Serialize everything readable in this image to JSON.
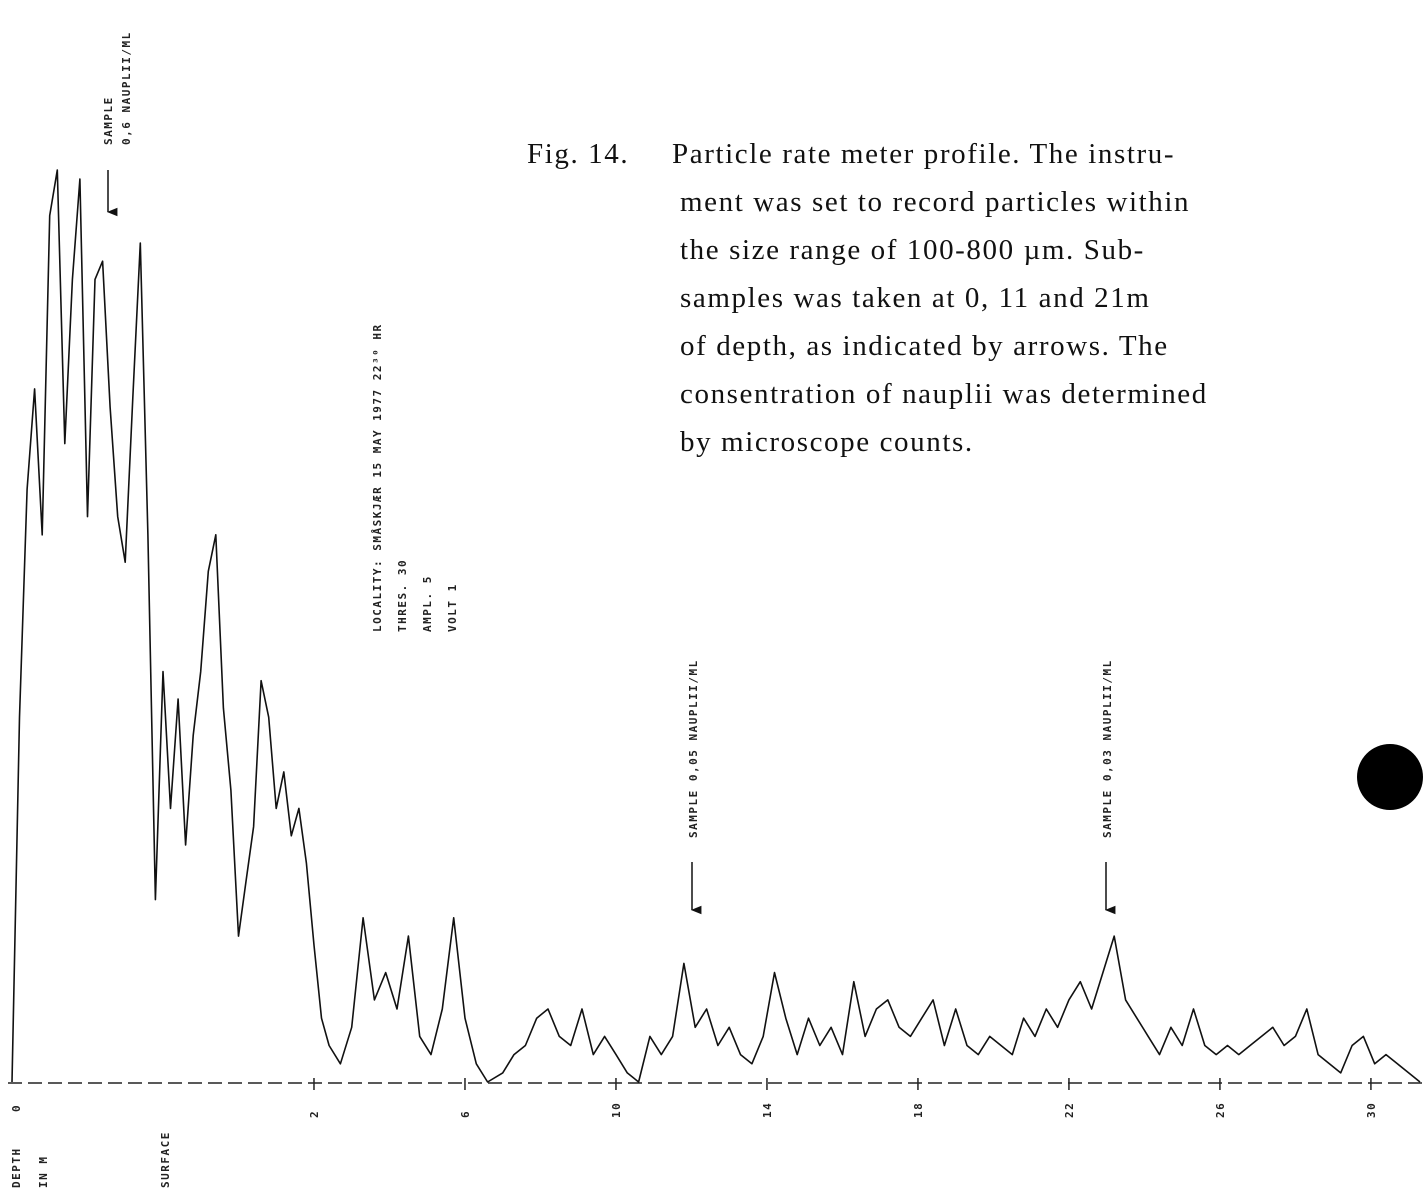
{
  "chart_data": {
    "type": "line",
    "x": [
      -6.0,
      -5.8,
      -5.6,
      -5.4,
      -5.2,
      -5.0,
      -4.8,
      -4.6,
      -4.4,
      -4.2,
      -4.0,
      -3.8,
      -3.6,
      -3.4,
      -3.2,
      -3.0,
      -2.8,
      -2.6,
      -2.4,
      -2.2,
      -2.0,
      -1.8,
      -1.6,
      -1.4,
      -1.2,
      -1.0,
      -0.8,
      -0.6,
      -0.4,
      -0.2,
      0.0,
      0.2,
      0.4,
      0.6,
      0.8,
      1.0,
      1.2,
      1.4,
      1.6,
      1.8,
      2.0,
      2.2,
      2.4,
      2.7,
      3.0,
      3.3,
      3.6,
      3.9,
      4.2,
      4.5,
      4.8,
      5.1,
      5.4,
      5.7,
      6.0,
      6.3,
      6.6,
      7.0,
      7.3,
      7.6,
      7.9,
      8.2,
      8.5,
      8.8,
      9.1,
      9.4,
      9.7,
      10.0,
      10.3,
      10.6,
      10.9,
      11.2,
      11.5,
      11.8,
      12.1,
      12.4,
      12.7,
      13.0,
      13.3,
      13.6,
      13.9,
      14.2,
      14.5,
      14.8,
      15.1,
      15.4,
      15.7,
      16.0,
      16.3,
      16.6,
      16.9,
      17.2,
      17.5,
      17.8,
      18.1,
      18.4,
      18.7,
      19.0,
      19.3,
      19.6,
      19.9,
      20.2,
      20.5,
      20.8,
      21.1,
      21.4,
      21.7,
      22.0,
      22.3,
      22.6,
      22.9,
      23.2,
      23.5,
      23.8,
      24.1,
      24.4,
      24.7,
      25.0,
      25.3,
      25.6,
      25.9,
      26.2,
      26.5,
      26.8,
      27.1,
      27.4,
      27.7,
      28.0,
      28.3,
      28.6,
      28.9,
      29.2,
      29.5,
      29.8,
      30.1,
      30.4,
      30.7,
      31.0,
      31.3
    ],
    "series": [
      {
        "color": "#111111",
        "values": [
          0,
          40,
          65,
          76,
          60,
          95,
          100,
          70,
          88,
          99,
          62,
          88,
          90,
          74,
          62,
          57,
          75,
          92,
          60,
          20,
          45,
          30,
          42,
          26,
          38,
          45,
          56,
          60,
          41,
          32,
          16,
          22,
          28,
          44,
          40,
          30,
          34,
          27,
          30,
          24,
          15,
          7,
          4,
          2,
          6,
          18,
          9,
          12,
          8,
          16,
          5,
          3,
          8,
          18,
          7,
          2,
          0,
          1,
          3,
          4,
          7,
          8,
          5,
          4,
          8,
          3,
          5,
          3,
          1,
          0,
          5,
          3,
          5,
          13,
          6,
          8,
          4,
          6,
          3,
          2,
          5,
          12,
          7,
          3,
          7,
          4,
          6,
          3,
          11,
          5,
          8,
          9,
          6,
          5,
          7,
          9,
          4,
          8,
          4,
          3,
          5,
          4,
          3,
          7,
          5,
          8,
          6,
          9,
          11,
          8,
          12,
          16,
          9,
          7,
          5,
          3,
          6,
          4,
          8,
          4,
          3,
          4,
          3,
          4,
          5,
          6,
          4,
          5,
          8,
          3,
          2,
          1,
          4,
          5,
          2,
          3,
          2,
          1,
          0
        ]
      }
    ],
    "xlim": [
      -6.0,
      31.3
    ],
    "ylim": [
      0,
      100
    ],
    "xticks": [
      2,
      6,
      10,
      14,
      18,
      22,
      26,
      30
    ],
    "annotations": [
      "SAMPLE",
      "0,6 NAUPLII/ML",
      "LOCALITY: SMÅSKJÆR 15 MAY 1977 22³⁰ HR",
      "THRES. 30",
      "AMPL. 5",
      "VOLT 1",
      "SAMPLE 0,05 NAUPLII/ML",
      "SAMPLE 0,03 NAUPLII/ML",
      "DEPTH",
      "IN M",
      "SURFACE",
      "0"
    ]
  },
  "caption": {
    "label": "Fig. 14.",
    "lines": [
      "Particle rate meter profile. The instru-",
      "ment was set to record particles within",
      "the size range of 100-800 µm. Sub-",
      "samples was taken at 0, 11 and 21m",
      "of depth, as indicated by arrows. The",
      "consentration of nauplii was determined",
      "by microscope counts."
    ]
  }
}
